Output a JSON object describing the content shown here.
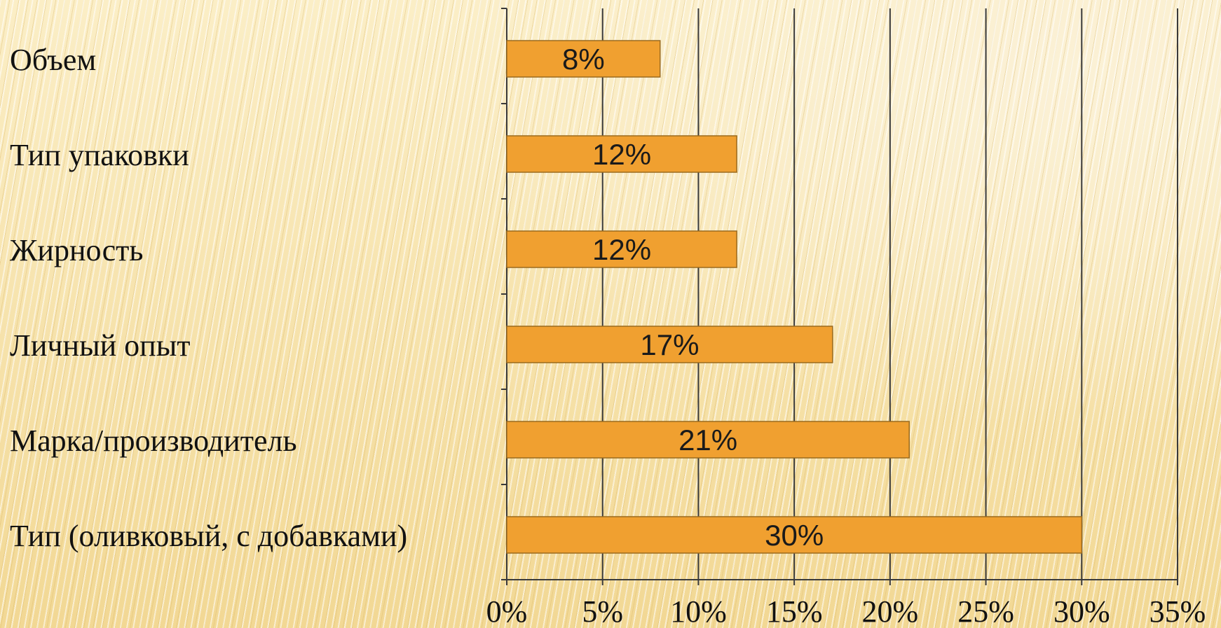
{
  "chart_data": {
    "type": "bar",
    "orientation": "horizontal",
    "categories": [
      "Объем",
      "Тип упаковки",
      "Жирность",
      "Личный опыт",
      "Марка/производитель",
      "Тип (оливковый, с добавками)"
    ],
    "values": [
      8,
      12,
      12,
      17,
      21,
      30
    ],
    "data_labels": [
      "8%",
      "12%",
      "12%",
      "17%",
      "21%",
      "30%"
    ],
    "x_ticks": [
      "0%",
      "5%",
      "10%",
      "15%",
      "20%",
      "25%",
      "30%",
      "35%"
    ],
    "xlim": [
      0,
      35
    ],
    "grid": "vertical",
    "legend": "none",
    "bar_color": "#f0a030",
    "bar_border_color": "#9a6a1e",
    "grid_color": "#3a3a3a"
  }
}
